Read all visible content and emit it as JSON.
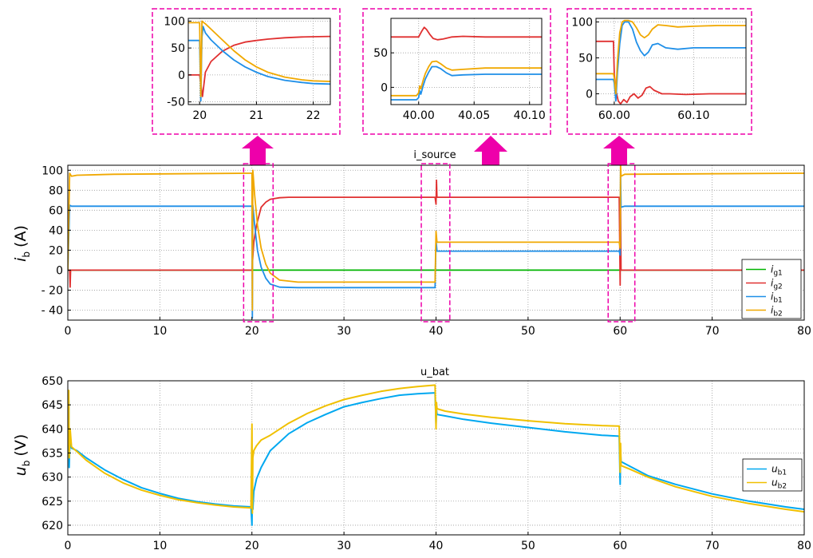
{
  "chart_data": [
    {
      "type": "line",
      "title": "i_source",
      "ylabel": {
        "main": "i",
        "sub": "b",
        "unit": "(A)"
      },
      "xlim": [
        0,
        80
      ],
      "ylim": [
        -50,
        105
      ],
      "xticks": [
        0,
        10,
        20,
        30,
        40,
        50,
        60,
        70,
        80
      ],
      "yticks": [
        100,
        80,
        60,
        40,
        20,
        0,
        -20,
        -40
      ],
      "ytick_labels": [
        "100",
        "80",
        "60",
        "40",
        "20",
        "0",
        "- 20",
        "- 40"
      ],
      "grid": true,
      "legend_position": "bottom-right",
      "series": [
        {
          "name": "i",
          "sub": "g1",
          "color": "#00b400",
          "x": [
            0,
            0.3,
            0.4,
            80
          ],
          "y": [
            0,
            0,
            0,
            0
          ]
        },
        {
          "name": "i",
          "sub": "g2",
          "color": "#e03030",
          "x": [
            0,
            0.2,
            0.25,
            0.3,
            0.4,
            19.9,
            20.0,
            20.2,
            20.5,
            21.0,
            21.5,
            22.0,
            23.0,
            24.0,
            26.0,
            30.0,
            39.9,
            40.0,
            40.05,
            40.1,
            41.0,
            59.9,
            60.0,
            60.05,
            60.1,
            60.3,
            61.0,
            80.0
          ],
          "y": [
            0,
            0,
            -17,
            0,
            0,
            0,
            0,
            28,
            45,
            63,
            68,
            71,
            72.5,
            73,
            73,
            73,
            73,
            66,
            90,
            73,
            73,
            73,
            -15,
            73,
            0,
            0,
            0,
            0
          ]
        },
        {
          "name": "i",
          "sub": "b1",
          "color": "#1f8fe8",
          "x": [
            0,
            0.2,
            0.4,
            1.0,
            19.9,
            20.0,
            20.05,
            20.1,
            20.3,
            20.6,
            21.0,
            21.5,
            22.0,
            23.0,
            25.0,
            30.0,
            39.9,
            40.0,
            40.1,
            40.5,
            59.9,
            60.0,
            60.05,
            60.1,
            60.5,
            80.0
          ],
          "y": [
            0,
            65,
            64,
            64,
            64,
            64,
            -48,
            65,
            45,
            20,
            3,
            -8,
            -14,
            -17,
            -17.5,
            -17.5,
            -17.5,
            30,
            19,
            19,
            19,
            15,
            100,
            63,
            64,
            64
          ]
        },
        {
          "name": "i",
          "sub": "b2",
          "color": "#f0a800",
          "x": [
            0,
            0.2,
            0.4,
            1.0,
            5.0,
            19.9,
            20.0,
            20.05,
            20.1,
            20.3,
            20.6,
            21.0,
            21.5,
            22.0,
            23.0,
            25.0,
            30.0,
            39.9,
            40.0,
            40.1,
            40.5,
            59.9,
            60.0,
            60.05,
            60.1,
            60.5,
            80.0
          ],
          "y": [
            0,
            97,
            94,
            95,
            96,
            97,
            97,
            -40,
            100,
            75,
            45,
            22,
            6,
            -3,
            -10,
            -12,
            -12,
            -12,
            39,
            28,
            28,
            28,
            22,
            105,
            94,
            96,
            97
          ]
        }
      ],
      "zoom_boxes": [
        [
          19.1,
          22.3
        ],
        [
          38.4,
          41.5
        ],
        [
          58.7,
          61.6
        ]
      ]
    },
    {
      "type": "line",
      "title": "",
      "xlim": [
        19.8,
        22.3
      ],
      "ylim": [
        -55,
        105
      ],
      "xticks": [
        20,
        21,
        22
      ],
      "yticks": [
        100,
        50,
        0,
        -50
      ],
      "grid": true,
      "series": [
        {
          "name": "i_g2",
          "color": "#e03030",
          "x": [
            19.8,
            20.0,
            20.05,
            20.1,
            20.2,
            20.4,
            20.6,
            20.8,
            21.0,
            21.2,
            21.5,
            21.8,
            22.0,
            22.3
          ],
          "y": [
            0,
            0,
            -40,
            5,
            25,
            44,
            55,
            61,
            64,
            66.5,
            69,
            70.5,
            71,
            71.5
          ]
        },
        {
          "name": "i_b1",
          "color": "#1f8fe8",
          "x": [
            19.8,
            19.95,
            20.0,
            20.02,
            20.04,
            20.06,
            20.1,
            20.2,
            20.4,
            20.6,
            20.8,
            21.0,
            21.2,
            21.5,
            21.8,
            22.0,
            22.3
          ],
          "y": [
            64,
            64,
            64,
            -48,
            70,
            90,
            78,
            65,
            45,
            28,
            15,
            5,
            -3,
            -10,
            -14,
            -16,
            -17
          ]
        },
        {
          "name": "i_b2",
          "color": "#f0a800",
          "x": [
            19.8,
            19.95,
            20.0,
            20.02,
            20.04,
            20.06,
            20.1,
            20.2,
            20.4,
            20.6,
            20.8,
            21.0,
            21.2,
            21.5,
            21.8,
            22.0,
            22.3
          ],
          "y": [
            97,
            97,
            97,
            -40,
            100,
            98,
            95,
            85,
            65,
            45,
            28,
            15,
            5,
            -4,
            -9,
            -11,
            -12
          ]
        }
      ]
    },
    {
      "type": "line",
      "title": "",
      "xlim": [
        39.975,
        40.111
      ],
      "ylim": [
        -25,
        100
      ],
      "xticks": [
        40.0,
        40.05,
        40.1
      ],
      "xtick_labels": [
        "40.00",
        "40.05",
        "40.10"
      ],
      "yticks": [
        50,
        0
      ],
      "grid": true,
      "series": [
        {
          "name": "i_g2",
          "color": "#e03030",
          "x": [
            39.975,
            39.998,
            40.0,
            40.001,
            40.003,
            40.005,
            40.007,
            40.01,
            40.013,
            40.017,
            40.022,
            40.03,
            40.04,
            40.06,
            40.08,
            40.111
          ],
          "y": [
            73,
            73,
            73,
            76,
            82,
            87,
            84,
            77,
            71,
            69,
            70,
            73,
            74,
            73,
            73,
            73
          ]
        },
        {
          "name": "i_b1",
          "color": "#1f8fe8",
          "x": [
            39.975,
            39.998,
            40.0,
            40.001,
            40.002,
            40.004,
            40.006,
            40.009,
            40.012,
            40.016,
            40.02,
            40.025,
            40.03,
            40.04,
            40.06,
            40.08,
            40.111
          ],
          "y": [
            -18,
            -18,
            -15,
            -5,
            -10,
            2,
            12,
            22,
            30,
            30,
            27,
            21,
            17,
            18,
            19,
            19,
            19
          ]
        },
        {
          "name": "i_b2",
          "color": "#f0a800",
          "x": [
            39.975,
            39.998,
            40.0,
            40.001,
            40.002,
            40.004,
            40.006,
            40.009,
            40.012,
            40.016,
            40.02,
            40.025,
            40.03,
            40.04,
            40.06,
            40.08,
            40.111
          ],
          "y": [
            -12,
            -12,
            -8,
            2,
            -2,
            10,
            20,
            30,
            37,
            38,
            34,
            28,
            25,
            26,
            28,
            28,
            28
          ]
        }
      ]
    },
    {
      "type": "line",
      "title": "",
      "xlim": [
        59.977,
        60.166
      ],
      "ylim": [
        -15,
        105
      ],
      "xticks": [
        60.0,
        60.1
      ],
      "xtick_labels": [
        "60.00",
        "60.10"
      ],
      "yticks": [
        100,
        50,
        0
      ],
      "grid": true,
      "series": [
        {
          "name": "i_g2",
          "color": "#e03030",
          "x": [
            59.977,
            59.999,
            60.0,
            60.002,
            60.005,
            60.008,
            60.012,
            60.016,
            60.02,
            60.025,
            60.03,
            60.035,
            60.04,
            60.045,
            60.05,
            60.06,
            60.07,
            60.09,
            60.12,
            60.166
          ],
          "y": [
            73,
            73,
            28,
            5,
            -10,
            -14,
            -8,
            -12,
            -4,
            0,
            -6,
            -2,
            8,
            10,
            5,
            0,
            0,
            -1,
            0,
            0
          ]
        },
        {
          "name": "i_b1",
          "color": "#1f8fe8",
          "x": [
            59.977,
            59.999,
            60.0,
            60.002,
            60.004,
            60.007,
            60.01,
            60.013,
            60.018,
            60.023,
            60.028,
            60.033,
            60.038,
            60.043,
            60.048,
            60.055,
            60.065,
            60.08,
            60.1,
            60.13,
            60.166
          ],
          "y": [
            20,
            20,
            15,
            -10,
            30,
            70,
            95,
            100,
            100,
            90,
            72,
            60,
            53,
            58,
            68,
            70,
            64,
            62,
            64,
            64,
            64
          ]
        },
        {
          "name": "i_b2",
          "color": "#f0a800",
          "x": [
            59.977,
            59.999,
            60.0,
            60.002,
            60.004,
            60.007,
            60.01,
            60.013,
            60.018,
            60.023,
            60.028,
            60.033,
            60.038,
            60.043,
            60.048,
            60.055,
            60.065,
            60.08,
            60.1,
            60.13,
            60.166
          ],
          "y": [
            28,
            28,
            22,
            0,
            45,
            85,
            100,
            102,
            102,
            100,
            92,
            82,
            78,
            82,
            90,
            96,
            95,
            93,
            94,
            95,
            95
          ]
        }
      ]
    },
    {
      "type": "line",
      "title": "u_bat",
      "ylabel": {
        "main": "u",
        "sub": "b",
        "unit": "(V)"
      },
      "xlim": [
        0,
        80
      ],
      "ylim": [
        618,
        650
      ],
      "xticks": [
        0,
        10,
        20,
        30,
        40,
        50,
        60,
        70,
        80
      ],
      "yticks": [
        650,
        645,
        640,
        635,
        630,
        625,
        620
      ],
      "grid": true,
      "legend_position": "bottom-right",
      "series": [
        {
          "name": "u",
          "sub": "b1",
          "color": "#00a8f0",
          "x": [
            0,
            0.1,
            0.15,
            0.25,
            0.4,
            1,
            2,
            4,
            6,
            8,
            10,
            12,
            14,
            16,
            18,
            19.9,
            20.0,
            20.05,
            20.1,
            20.2,
            20.5,
            21,
            22,
            24,
            26,
            28,
            30,
            32,
            34,
            36,
            38,
            39.9,
            40.0,
            40.05,
            40.1,
            41,
            43,
            46,
            50,
            54,
            58,
            59.9,
            60.0,
            60.05,
            60.1,
            61,
            63,
            66,
            70,
            74,
            78,
            80
          ],
          "y": [
            636.5,
            646,
            632,
            639,
            636,
            635.5,
            634,
            631.5,
            629.5,
            627.8,
            626.6,
            625.6,
            624.9,
            624.4,
            624.0,
            623.8,
            620,
            628,
            623.3,
            627,
            629.6,
            632,
            635.5,
            639,
            641.3,
            643,
            644.6,
            645.5,
            646.3,
            647,
            647.3,
            647.5,
            641,
            644,
            643,
            642.7,
            642,
            641.2,
            640.3,
            639.4,
            638.7,
            638.5,
            628.5,
            635,
            633.2,
            632.3,
            630.3,
            628.5,
            626.5,
            625,
            623.8,
            623.3
          ]
        },
        {
          "name": "u",
          "sub": "b2",
          "color": "#f0c000",
          "x": [
            0,
            0.1,
            0.15,
            0.25,
            0.4,
            1,
            2,
            4,
            6,
            8,
            10,
            12,
            14,
            16,
            18,
            19.9,
            20.0,
            20.05,
            20.1,
            20.2,
            20.5,
            21,
            22,
            24,
            26,
            28,
            30,
            32,
            34,
            36,
            38,
            39.9,
            40.0,
            40.05,
            40.1,
            41,
            43,
            46,
            50,
            54,
            58,
            59.9,
            60.0,
            60.05,
            60.1,
            61,
            63,
            66,
            70,
            74,
            78,
            80
          ],
          "y": [
            636.5,
            648,
            634,
            640,
            636.3,
            635.3,
            633.5,
            630.8,
            628.8,
            627.3,
            626.2,
            625.3,
            624.7,
            624.2,
            623.8,
            623.6,
            641,
            622.5,
            634,
            635.5,
            636.5,
            637.7,
            638.7,
            641.2,
            643.2,
            644.8,
            646.1,
            647,
            647.8,
            648.4,
            648.8,
            649.1,
            640,
            645.5,
            644.2,
            643.7,
            643.1,
            642.4,
            641.7,
            641.1,
            640.7,
            640.6,
            631,
            637,
            632.4,
            631.7,
            630,
            628,
            626,
            624.5,
            623.3,
            622.8
          ]
        }
      ]
    }
  ]
}
